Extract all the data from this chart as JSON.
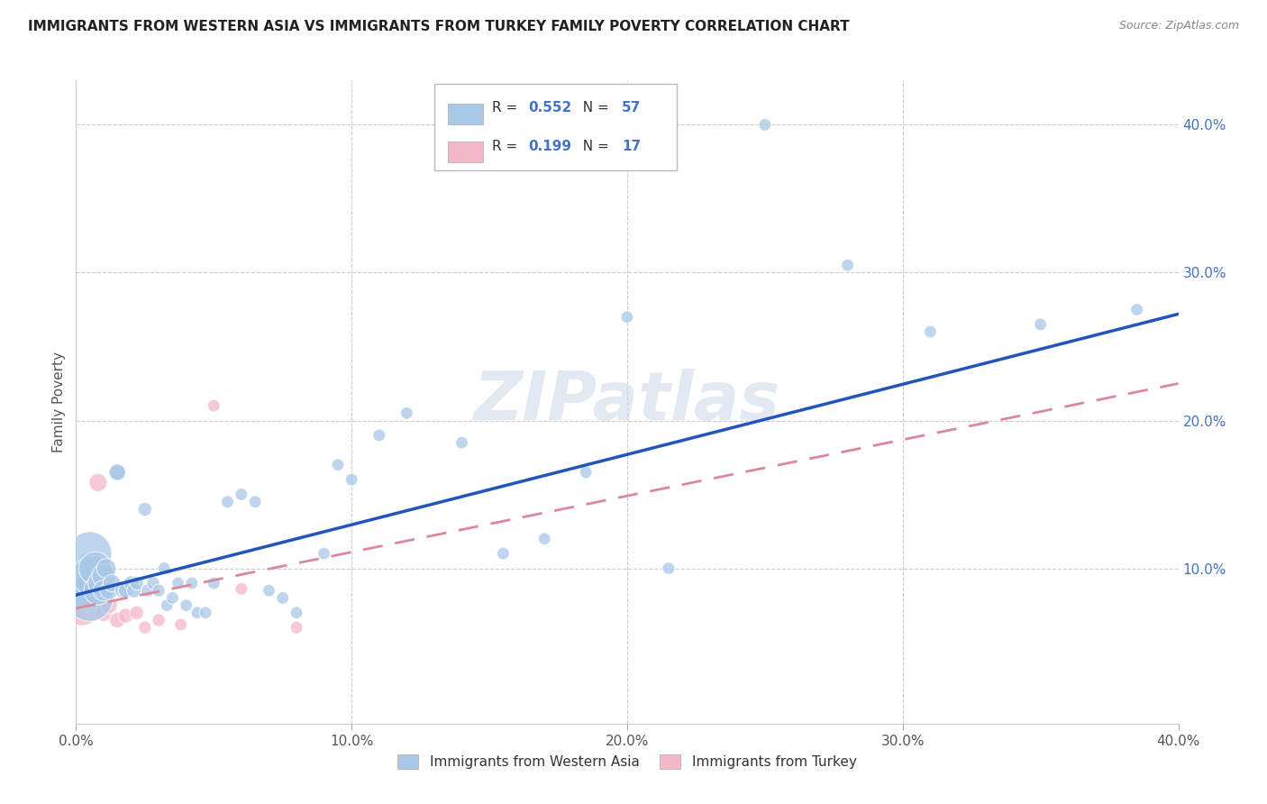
{
  "title": "IMMIGRANTS FROM WESTERN ASIA VS IMMIGRANTS FROM TURKEY FAMILY POVERTY CORRELATION CHART",
  "source": "Source: ZipAtlas.com",
  "ylabel": "Family Poverty",
  "xlim": [
    0.0,
    0.4
  ],
  "ylim": [
    -0.005,
    0.43
  ],
  "xtick_labels": [
    "0.0%",
    "10.0%",
    "20.0%",
    "30.0%",
    "40.0%"
  ],
  "xtick_vals": [
    0.0,
    0.1,
    0.2,
    0.3,
    0.4
  ],
  "ytick_labels": [
    "10.0%",
    "20.0%",
    "30.0%",
    "40.0%"
  ],
  "ytick_vals": [
    0.1,
    0.2,
    0.3,
    0.4
  ],
  "legend_label_blue": "Immigrants from Western Asia",
  "legend_label_pink": "Immigrants from Turkey",
  "R_blue": "0.552",
  "N_blue": "57",
  "R_pink": "0.199",
  "N_pink": "17",
  "blue_color": "#a8c8e8",
  "pink_color": "#f4b8c8",
  "blue_line_color": "#2255bb",
  "pink_line_color": "#dd8899",
  "watermark": "ZIPatlas",
  "blue_scatter_x": [
    0.002,
    0.003,
    0.004,
    0.004,
    0.005,
    0.005,
    0.006,
    0.007,
    0.008,
    0.009,
    0.01,
    0.01,
    0.011,
    0.012,
    0.013,
    0.015,
    0.015,
    0.017,
    0.018,
    0.02,
    0.021,
    0.022,
    0.025,
    0.026,
    0.028,
    0.03,
    0.032,
    0.033,
    0.035,
    0.037,
    0.04,
    0.042,
    0.044,
    0.047,
    0.05,
    0.055,
    0.06,
    0.065,
    0.07,
    0.075,
    0.08,
    0.09,
    0.095,
    0.1,
    0.11,
    0.12,
    0.14,
    0.155,
    0.17,
    0.185,
    0.2,
    0.215,
    0.25,
    0.28,
    0.31,
    0.35,
    0.385
  ],
  "blue_scatter_y": [
    0.095,
    0.09,
    0.105,
    0.085,
    0.08,
    0.11,
    0.095,
    0.1,
    0.085,
    0.09,
    0.095,
    0.085,
    0.1,
    0.085,
    0.09,
    0.165,
    0.165,
    0.085,
    0.085,
    0.09,
    0.085,
    0.09,
    0.14,
    0.085,
    0.09,
    0.085,
    0.1,
    0.075,
    0.08,
    0.09,
    0.075,
    0.09,
    0.07,
    0.07,
    0.09,
    0.145,
    0.15,
    0.145,
    0.085,
    0.08,
    0.07,
    0.11,
    0.17,
    0.16,
    0.19,
    0.205,
    0.185,
    0.11,
    0.12,
    0.165,
    0.27,
    0.1,
    0.4,
    0.305,
    0.26,
    0.265,
    0.275
  ],
  "blue_scatter_size": [
    80,
    60,
    50,
    250,
    400,
    350,
    300,
    200,
    150,
    120,
    100,
    80,
    70,
    60,
    55,
    50,
    50,
    45,
    40,
    40,
    38,
    35,
    35,
    30,
    30,
    30,
    28,
    28,
    28,
    28,
    28,
    28,
    28,
    28,
    28,
    28,
    28,
    28,
    28,
    28,
    28,
    28,
    28,
    28,
    28,
    28,
    28,
    28,
    28,
    28,
    28,
    28,
    28,
    28,
    28,
    28,
    28
  ],
  "pink_scatter_x": [
    0.002,
    0.003,
    0.004,
    0.005,
    0.006,
    0.008,
    0.01,
    0.012,
    0.015,
    0.018,
    0.022,
    0.025,
    0.03,
    0.038,
    0.05,
    0.06,
    0.08
  ],
  "pink_scatter_y": [
    0.075,
    0.09,
    0.085,
    0.08,
    0.095,
    0.158,
    0.07,
    0.075,
    0.065,
    0.068,
    0.07,
    0.06,
    0.065,
    0.062,
    0.21,
    0.086,
    0.06
  ],
  "pink_scatter_size": [
    300,
    200,
    150,
    120,
    80,
    60,
    55,
    50,
    45,
    40,
    35,
    30,
    30,
    28,
    28,
    28,
    28
  ],
  "blue_regline_x": [
    0.0,
    0.4
  ],
  "blue_regline_y": [
    0.082,
    0.272
  ],
  "pink_regline_x": [
    0.0,
    0.4
  ],
  "pink_regline_y": [
    0.073,
    0.225
  ]
}
